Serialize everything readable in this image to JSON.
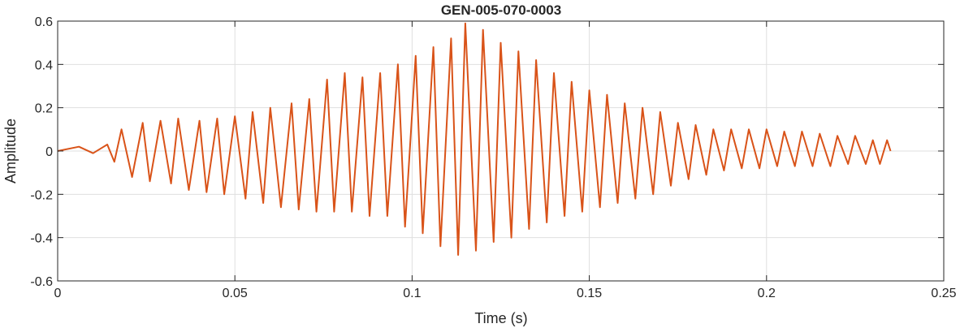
{
  "chart_data": {
    "type": "line",
    "title": "GEN-005-070-0003",
    "xlabel": "Time (s)",
    "ylabel": "Amplitude",
    "xlim": [
      0,
      0.25
    ],
    "ylim": [
      -0.6,
      0.6
    ],
    "xticks": [
      0,
      0.05,
      0.1,
      0.15,
      0.2,
      0.25
    ],
    "xtick_labels": [
      "0",
      "0.05",
      "0.1",
      "0.15",
      "0.2",
      "0.25"
    ],
    "yticks": [
      -0.6,
      -0.4,
      -0.2,
      0,
      0.2,
      0.4,
      0.6
    ],
    "ytick_labels": [
      "-0.6",
      "-0.4",
      "-0.2",
      "0",
      "0.2",
      "0.4",
      "0.6"
    ],
    "grid": true,
    "line_color": "#D95319",
    "series": [
      {
        "name": "",
        "x": [
          0,
          0.006,
          0.01,
          0.014,
          0.016,
          0.018,
          0.021,
          0.024,
          0.026,
          0.029,
          0.032,
          0.034,
          0.037,
          0.04,
          0.042,
          0.045,
          0.047,
          0.05,
          0.053,
          0.055,
          0.058,
          0.06,
          0.063,
          0.066,
          0.068,
          0.071,
          0.073,
          0.076,
          0.078,
          0.081,
          0.083,
          0.086,
          0.088,
          0.091,
          0.093,
          0.096,
          0.098,
          0.101,
          0.103,
          0.106,
          0.108,
          0.111,
          0.113,
          0.115,
          0.118,
          0.12,
          0.123,
          0.125,
          0.128,
          0.13,
          0.133,
          0.135,
          0.138,
          0.14,
          0.143,
          0.145,
          0.148,
          0.15,
          0.153,
          0.155,
          0.158,
          0.16,
          0.163,
          0.165,
          0.168,
          0.17,
          0.173,
          0.175,
          0.178,
          0.18,
          0.183,
          0.185,
          0.188,
          0.19,
          0.193,
          0.195,
          0.198,
          0.2,
          0.203,
          0.205,
          0.208,
          0.21,
          0.213,
          0.215,
          0.218,
          0.22,
          0.223,
          0.225,
          0.228,
          0.23,
          0.232,
          0.234,
          0.235
        ],
        "y": [
          0,
          0.02,
          -0.01,
          0.03,
          -0.05,
          0.1,
          -0.12,
          0.13,
          -0.14,
          0.14,
          -0.15,
          0.15,
          -0.18,
          0.14,
          -0.19,
          0.15,
          -0.2,
          0.16,
          -0.22,
          0.18,
          -0.24,
          0.2,
          -0.26,
          0.22,
          -0.27,
          0.24,
          -0.28,
          0.33,
          -0.28,
          0.36,
          -0.28,
          0.34,
          -0.3,
          0.36,
          -0.3,
          0.4,
          -0.35,
          0.44,
          -0.38,
          0.48,
          -0.44,
          0.52,
          -0.48,
          0.59,
          -0.46,
          0.56,
          -0.42,
          0.5,
          -0.4,
          0.46,
          -0.36,
          0.42,
          -0.33,
          0.36,
          -0.3,
          0.32,
          -0.28,
          0.28,
          -0.26,
          0.26,
          -0.24,
          0.22,
          -0.22,
          0.2,
          -0.2,
          0.18,
          -0.16,
          0.13,
          -0.13,
          0.12,
          -0.11,
          0.1,
          -0.09,
          0.1,
          -0.08,
          0.1,
          -0.08,
          0.1,
          -0.07,
          0.09,
          -0.07,
          0.09,
          -0.07,
          0.08,
          -0.07,
          0.07,
          -0.06,
          0.07,
          -0.06,
          0.05,
          -0.06,
          0.05,
          0
        ]
      }
    ]
  }
}
